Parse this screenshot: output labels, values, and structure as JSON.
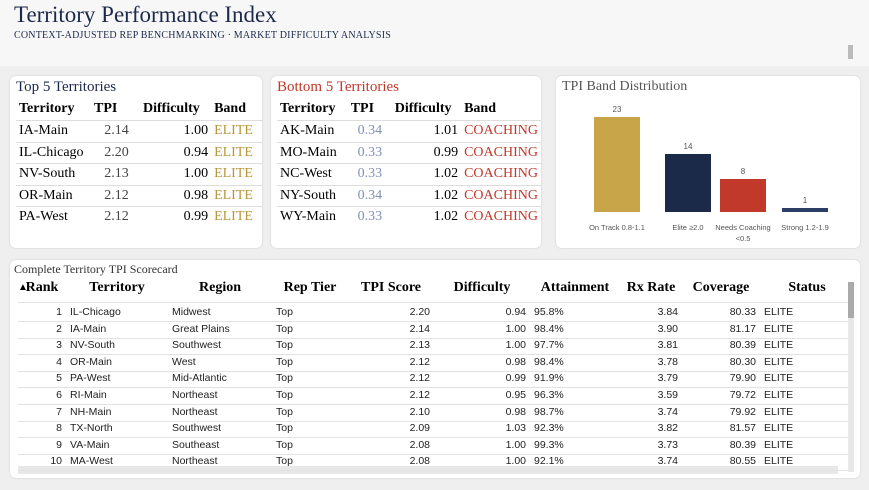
{
  "header": {
    "title": "Territory Performance Index",
    "subtitle": "CONTEXT-ADJUSTED REP BENCHMARKING · MARKET DIFFICULTY ANALYSIS"
  },
  "top_table": {
    "title": "Top 5 Territories",
    "columns": [
      "Territory",
      "TPI",
      "Difficulty",
      "Band"
    ],
    "rows": [
      [
        "IA-Main",
        "2.14",
        "1.00",
        "ELITE"
      ],
      [
        "IL-Chicago",
        "2.20",
        "0.94",
        "ELITE"
      ],
      [
        "NV-South",
        "2.13",
        "1.00",
        "ELITE"
      ],
      [
        "OR-Main",
        "2.12",
        "0.98",
        "ELITE"
      ],
      [
        "PA-West",
        "2.12",
        "0.99",
        "ELITE"
      ]
    ]
  },
  "bottom_table": {
    "title": "Bottom 5 Territories",
    "columns": [
      "Territory",
      "TPI",
      "Difficulty",
      "Band"
    ],
    "rows": [
      [
        "AK-Main",
        "0.34",
        "1.01",
        "COACHING"
      ],
      [
        "MO-Main",
        "0.33",
        "0.99",
        "COACHING"
      ],
      [
        "NC-West",
        "0.33",
        "1.02",
        "COACHING"
      ],
      [
        "NY-South",
        "0.34",
        "1.02",
        "COACHING"
      ],
      [
        "WY-Main",
        "0.33",
        "1.02",
        "COACHING"
      ]
    ]
  },
  "chart_data": {
    "type": "bar",
    "title": "TPI Band Distribution",
    "categories": [
      "On Track 0.8-1.1",
      "Elite ≥2.0",
      "Needs Coaching <0.5",
      "Strong 1.2-1.9"
    ],
    "values": [
      23,
      14,
      8,
      1
    ],
    "colors": [
      "#c9a54a",
      "#1c2a4a",
      "#c0392b",
      "#2c3e66"
    ]
  },
  "scorecard": {
    "title": "Complete Territory TPI Scorecard",
    "columns": [
      "Rank",
      "Territory",
      "Region",
      "Rep Tier",
      "TPI Score",
      "Difficulty",
      "Attainment",
      "Rx Rate",
      "Coverage",
      "Status"
    ],
    "rows": [
      [
        "1",
        "IL-Chicago",
        "Midwest",
        "Top",
        "2.20",
        "0.94",
        "95.8%",
        "3.84",
        "80.33",
        "ELITE"
      ],
      [
        "2",
        "IA-Main",
        "Great Plains",
        "Top",
        "2.14",
        "1.00",
        "98.4%",
        "3.90",
        "81.17",
        "ELITE"
      ],
      [
        "3",
        "NV-South",
        "Southwest",
        "Top",
        "2.13",
        "1.00",
        "97.7%",
        "3.81",
        "80.39",
        "ELITE"
      ],
      [
        "4",
        "OR-Main",
        "West",
        "Top",
        "2.12",
        "0.98",
        "98.4%",
        "3.78",
        "80.30",
        "ELITE"
      ],
      [
        "5",
        "PA-West",
        "Mid-Atlantic",
        "Top",
        "2.12",
        "0.99",
        "91.9%",
        "3.79",
        "79.90",
        "ELITE"
      ],
      [
        "6",
        "RI-Main",
        "Northeast",
        "Top",
        "2.12",
        "0.95",
        "96.3%",
        "3.59",
        "79.72",
        "ELITE"
      ],
      [
        "7",
        "NH-Main",
        "Northeast",
        "Top",
        "2.10",
        "0.98",
        "98.7%",
        "3.74",
        "79.92",
        "ELITE"
      ],
      [
        "8",
        "TX-North",
        "Southwest",
        "Top",
        "2.09",
        "1.03",
        "92.3%",
        "3.82",
        "81.57",
        "ELITE"
      ],
      [
        "9",
        "VA-Main",
        "Southeast",
        "Top",
        "2.08",
        "1.00",
        "99.3%",
        "3.73",
        "80.39",
        "ELITE"
      ],
      [
        "10",
        "MA-West",
        "Northeast",
        "Top",
        "2.08",
        "1.00",
        "92.1%",
        "3.74",
        "80.55",
        "ELITE"
      ]
    ]
  }
}
